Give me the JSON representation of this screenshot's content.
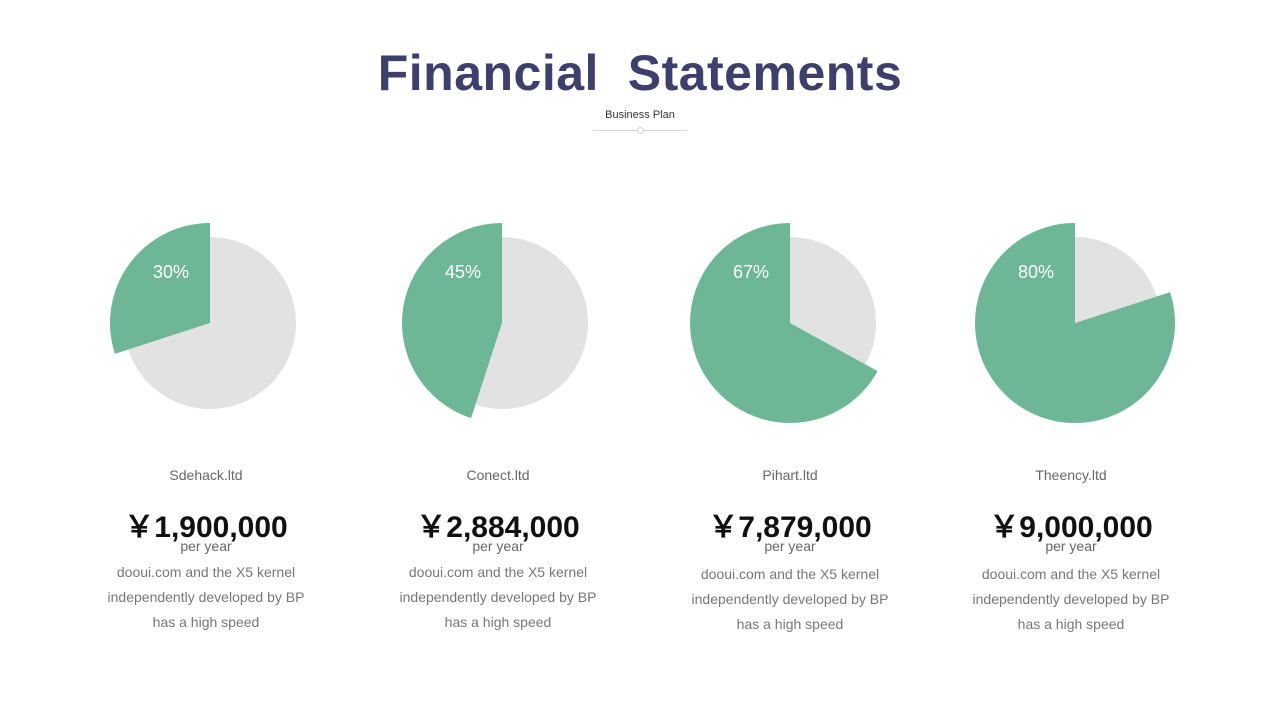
{
  "header": {
    "title": "Financial  Statements",
    "subtitle": "Business Plan"
  },
  "colors": {
    "accent": "#6db797",
    "remainder": "#e2e2e2",
    "title": "#3d3f6d"
  },
  "chart_data": [
    {
      "type": "pie",
      "categories": [
        "highlighted",
        "remainder"
      ],
      "values": [
        30,
        70
      ],
      "label": "30%"
    },
    {
      "type": "pie",
      "categories": [
        "highlighted",
        "remainder"
      ],
      "values": [
        45,
        55
      ],
      "label": "45%"
    },
    {
      "type": "pie",
      "categories": [
        "highlighted",
        "remainder"
      ],
      "values": [
        67,
        33
      ],
      "label": "67%"
    },
    {
      "type": "pie",
      "categories": [
        "highlighted",
        "remainder"
      ],
      "values": [
        80,
        20
      ],
      "label": "80%"
    }
  ],
  "companies": [
    {
      "name": "Sdehack.ltd",
      "amount": "￥1,900,000",
      "period": "per year",
      "desc": [
        "dooui.com and the X5 kernel",
        "independently developed by BP",
        "has a high speed"
      ]
    },
    {
      "name": "Conect.ltd",
      "amount": "￥2,884,000",
      "period": "per year",
      "desc": [
        "dooui.com and the X5 kernel",
        "independently developed by BP",
        "has a high speed"
      ]
    },
    {
      "name": "Pihart.ltd",
      "amount": "￥7,879,000",
      "period": "per year",
      "desc": [
        "dooui.com and the X5 kernel",
        "independently developed by BP",
        "has a high speed"
      ]
    },
    {
      "name": "Theency.ltd",
      "amount": "￥9,000,000",
      "period": "per year",
      "desc": [
        "dooui.com and the X5 kernel",
        "independently developed by BP",
        "has a high speed"
      ]
    }
  ]
}
